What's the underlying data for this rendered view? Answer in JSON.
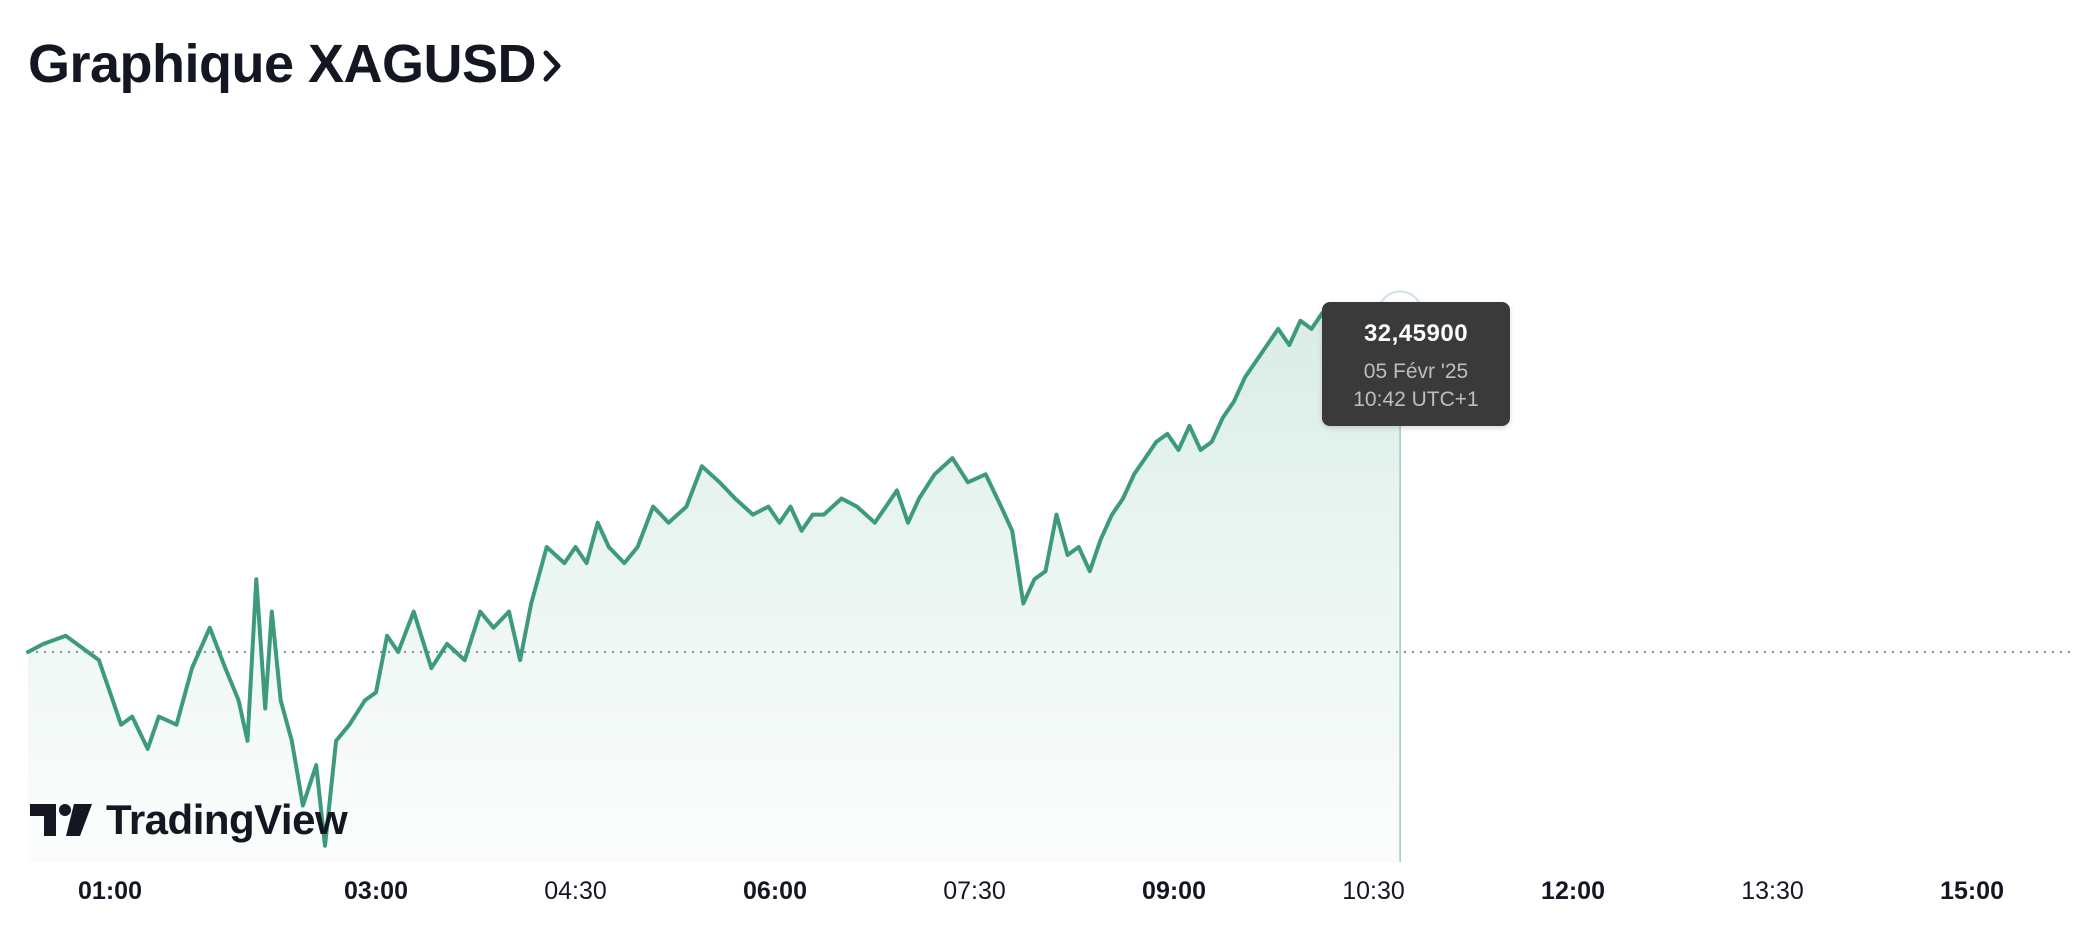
{
  "page": {
    "title": "Graphique XAGUSD",
    "title_icon": "chevron-right-icon"
  },
  "colors": {
    "line": "#3d9a7f",
    "area_top": "#d6ebe3",
    "area_bottom": "#f7fbfa",
    "baseline": "#777777",
    "tooltip_bg": "#3a3a3a"
  },
  "tooltip": {
    "value": "32,45900",
    "date": "05 Févr '25",
    "time": "10:42 UTC+1"
  },
  "brand": {
    "logo_icon": "tradingview-logo-icon",
    "name": "TradingView"
  },
  "chart_data": {
    "type": "area",
    "title": "Graphique XAGUSD",
    "xlabel": "",
    "ylabel": "",
    "x_range": [
      "00:23",
      "15:46"
    ],
    "ylim": [
      31.78,
      32.55
    ],
    "baseline": 32.04,
    "grid": false,
    "legend": "none",
    "x_ticks": [
      {
        "label": "01:00",
        "t": "01:00",
        "major": true
      },
      {
        "label": "03:00",
        "t": "03:00",
        "major": true
      },
      {
        "label": "04:30",
        "t": "04:30",
        "major": false
      },
      {
        "label": "06:00",
        "t": "06:00",
        "major": true
      },
      {
        "label": "07:30",
        "t": "07:30",
        "major": false
      },
      {
        "label": "09:00",
        "t": "09:00",
        "major": true
      },
      {
        "label": "10:30",
        "t": "10:30",
        "major": false
      },
      {
        "label": "12:00",
        "t": "12:00",
        "major": true
      },
      {
        "label": "13:30",
        "t": "13:30",
        "major": false
      },
      {
        "label": "15:00",
        "t": "15:00",
        "major": true
      }
    ],
    "crosshair": {
      "t": "10:42",
      "value": 32.459
    },
    "series": [
      {
        "values": [
          [
            "00:23",
            32.04
          ],
          [
            "00:30",
            32.05
          ],
          [
            "00:40",
            32.06
          ],
          [
            "00:50",
            32.04
          ],
          [
            "00:55",
            32.03
          ],
          [
            "01:00",
            31.99
          ],
          [
            "01:05",
            31.95
          ],
          [
            "01:10",
            31.96
          ],
          [
            "01:17",
            31.92
          ],
          [
            "01:22",
            31.96
          ],
          [
            "01:30",
            31.95
          ],
          [
            "01:37",
            32.02
          ],
          [
            "01:45",
            32.07
          ],
          [
            "01:52",
            32.02
          ],
          [
            "01:58",
            31.98
          ],
          [
            "02:02",
            31.93
          ],
          [
            "02:06",
            32.13
          ],
          [
            "02:10",
            31.97
          ],
          [
            "02:13",
            32.09
          ],
          [
            "02:17",
            31.98
          ],
          [
            "02:22",
            31.93
          ],
          [
            "02:27",
            31.85
          ],
          [
            "02:33",
            31.9
          ],
          [
            "02:37",
            31.8
          ],
          [
            "02:42",
            31.93
          ],
          [
            "02:48",
            31.95
          ],
          [
            "02:55",
            31.98
          ],
          [
            "03:00",
            31.99
          ],
          [
            "03:05",
            32.06
          ],
          [
            "03:10",
            32.04
          ],
          [
            "03:17",
            32.09
          ],
          [
            "03:25",
            32.02
          ],
          [
            "03:32",
            32.05
          ],
          [
            "03:40",
            32.03
          ],
          [
            "03:47",
            32.09
          ],
          [
            "03:53",
            32.07
          ],
          [
            "04:00",
            32.09
          ],
          [
            "04:05",
            32.03
          ],
          [
            "04:10",
            32.1
          ],
          [
            "04:17",
            32.17
          ],
          [
            "04:25",
            32.15
          ],
          [
            "04:30",
            32.17
          ],
          [
            "04:35",
            32.15
          ],
          [
            "04:40",
            32.2
          ],
          [
            "04:45",
            32.17
          ],
          [
            "04:52",
            32.15
          ],
          [
            "04:58",
            32.17
          ],
          [
            "05:05",
            32.22
          ],
          [
            "05:12",
            32.2
          ],
          [
            "05:20",
            32.22
          ],
          [
            "05:27",
            32.27
          ],
          [
            "05:35",
            32.25
          ],
          [
            "05:42",
            32.23
          ],
          [
            "05:50",
            32.21
          ],
          [
            "05:57",
            32.22
          ],
          [
            "06:02",
            32.2
          ],
          [
            "06:07",
            32.22
          ],
          [
            "06:12",
            32.19
          ],
          [
            "06:17",
            32.21
          ],
          [
            "06:22",
            32.21
          ],
          [
            "06:30",
            32.23
          ],
          [
            "06:37",
            32.22
          ],
          [
            "06:45",
            32.2
          ],
          [
            "06:50",
            32.22
          ],
          [
            "06:55",
            32.24
          ],
          [
            "07:00",
            32.2
          ],
          [
            "07:05",
            32.23
          ],
          [
            "07:12",
            32.26
          ],
          [
            "07:20",
            32.28
          ],
          [
            "07:27",
            32.25
          ],
          [
            "07:35",
            32.26
          ],
          [
            "07:42",
            32.22
          ],
          [
            "07:47",
            32.19
          ],
          [
            "07:52",
            32.1
          ],
          [
            "07:57",
            32.13
          ],
          [
            "08:02",
            32.14
          ],
          [
            "08:07",
            32.21
          ],
          [
            "08:12",
            32.16
          ],
          [
            "08:17",
            32.17
          ],
          [
            "08:22",
            32.14
          ],
          [
            "08:27",
            32.18
          ],
          [
            "08:32",
            32.21
          ],
          [
            "08:37",
            32.23
          ],
          [
            "08:42",
            32.26
          ],
          [
            "08:47",
            32.28
          ],
          [
            "08:52",
            32.3
          ],
          [
            "08:57",
            32.31
          ],
          [
            "09:02",
            32.29
          ],
          [
            "09:07",
            32.32
          ],
          [
            "09:12",
            32.29
          ],
          [
            "09:17",
            32.3
          ],
          [
            "09:22",
            32.33
          ],
          [
            "09:27",
            32.35
          ],
          [
            "09:32",
            32.38
          ],
          [
            "09:37",
            32.4
          ],
          [
            "09:42",
            32.42
          ],
          [
            "09:47",
            32.44
          ],
          [
            "09:52",
            32.42
          ],
          [
            "09:57",
            32.45
          ],
          [
            "10:02",
            32.44
          ],
          [
            "10:07",
            32.46
          ],
          [
            "10:12",
            32.46
          ],
          [
            "10:17",
            32.45
          ],
          [
            "10:22",
            32.46
          ],
          [
            "10:27",
            32.47
          ],
          [
            "10:32",
            32.46
          ],
          [
            "10:37",
            32.47
          ],
          [
            "10:42",
            32.459
          ]
        ]
      }
    ]
  }
}
